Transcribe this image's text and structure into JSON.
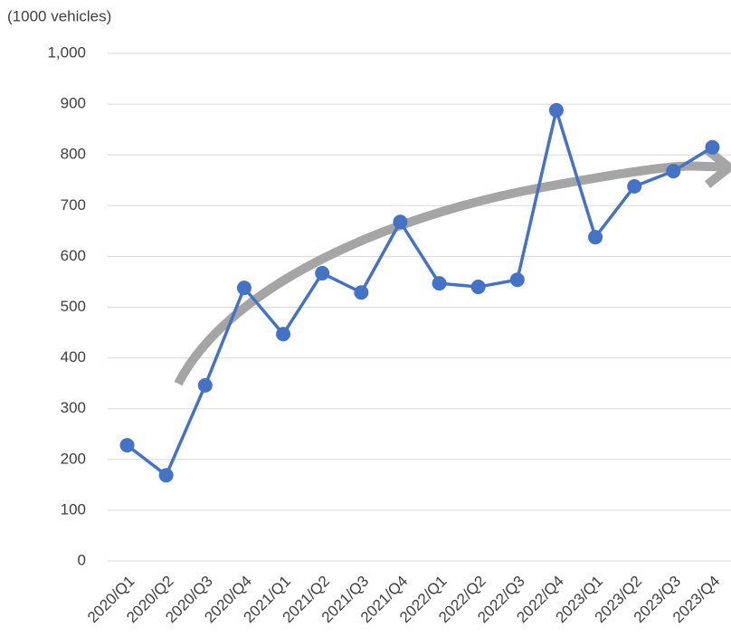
{
  "chart_data": {
    "type": "line",
    "y_label": "(1000 vehicles)",
    "categories": [
      "2020/Q1",
      "2020/Q2",
      "2020/Q3",
      "2020/Q4",
      "2021/Q1",
      "2021/Q2",
      "2021/Q3",
      "2021/Q4",
      "2022/Q1",
      "2022/Q2",
      "2022/Q3",
      "2022/Q4",
      "2023/Q1",
      "2023/Q2",
      "2023/Q3",
      "2023/Q4"
    ],
    "values": [
      228,
      169,
      346,
      538,
      447,
      567,
      529,
      668,
      547,
      540,
      554,
      888,
      638,
      738,
      768,
      815
    ],
    "color": "#4472c4",
    "ylim": [
      0,
      1000
    ],
    "yticks": [
      0,
      100,
      200,
      300,
      400,
      500,
      600,
      700,
      800,
      900,
      {
        "value": 1000,
        "label": "1,000"
      }
    ],
    "grid": true
  }
}
